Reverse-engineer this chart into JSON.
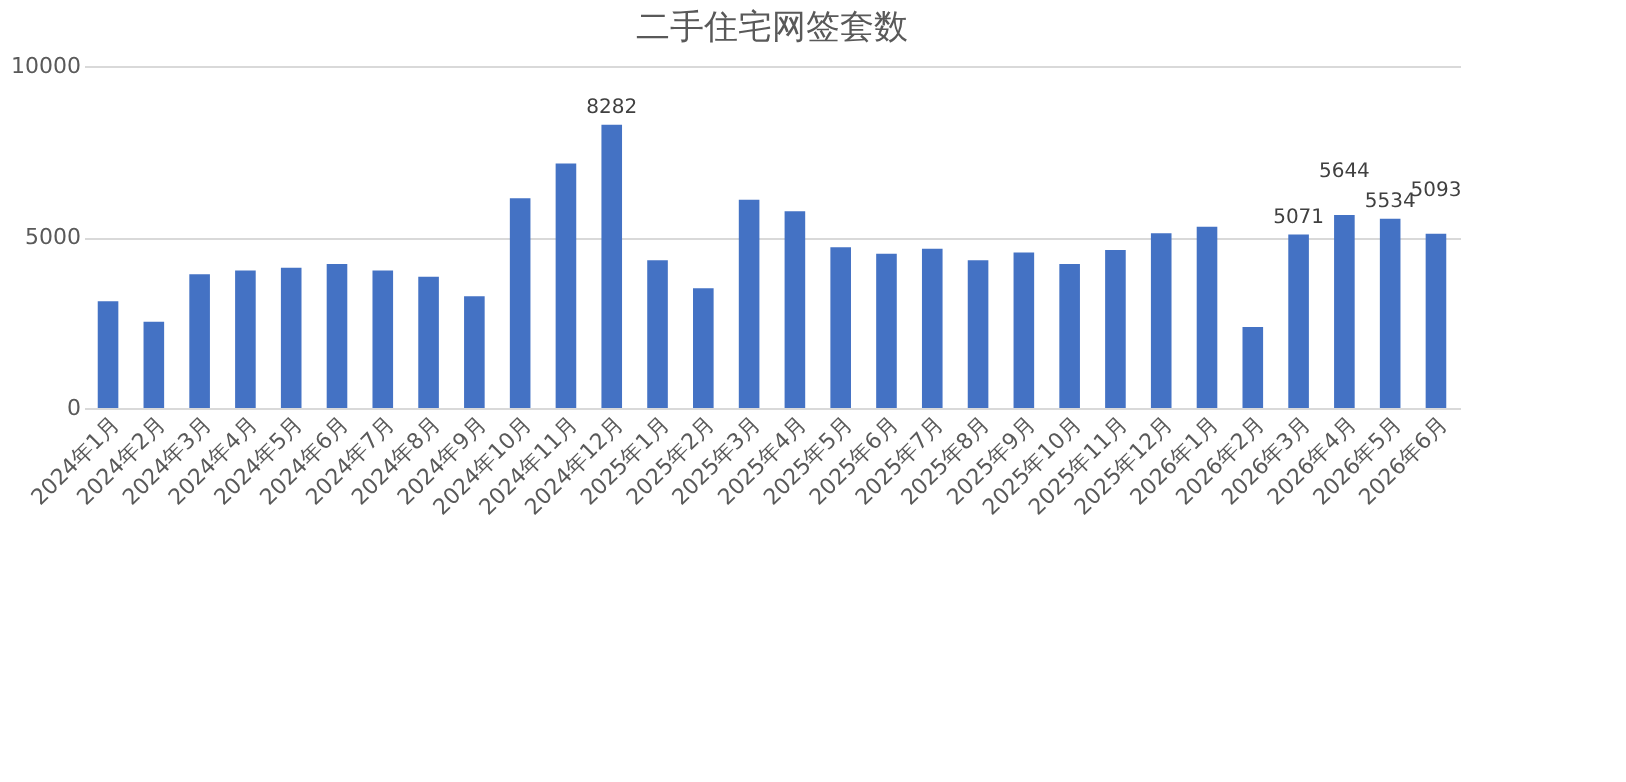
{
  "chart_data": {
    "type": "bar",
    "title": "二手住宅网签套数",
    "categories": [
      "2024年1月",
      "2024年2月",
      "2024年3月",
      "2024年4月",
      "2024年5月",
      "2024年6月",
      "2024年7月",
      "2024年8月",
      "2024年9月",
      "2024年10月",
      "2024年11月",
      "2024年12月",
      "2025年1月",
      "2025年2月",
      "2025年3月",
      "2025年4月",
      "2025年5月",
      "2025年6月",
      "2025年7月",
      "2025年8月",
      "2025年9月",
      "2025年10月",
      "2025年11月",
      "2025年12月",
      "2026年1月",
      "2026年2月",
      "2026年3月",
      "2026年4月",
      "2026年5月",
      "2026年6月"
    ],
    "values": [
      3120,
      2520,
      3910,
      4020,
      4100,
      4210,
      4020,
      3840,
      3270,
      6130,
      7150,
      8282,
      4320,
      3500,
      6090,
      5750,
      4700,
      4510,
      4660,
      4320,
      4550,
      4210,
      4620,
      5110,
      5300,
      2370,
      5071,
      5644,
      5534,
      5093
    ],
    "value_labels": [
      null,
      null,
      null,
      null,
      null,
      null,
      null,
      null,
      null,
      null,
      null,
      "8282",
      null,
      null,
      null,
      null,
      null,
      null,
      null,
      null,
      null,
      null,
      null,
      null,
      null,
      null,
      "5071",
      "5644",
      "5534",
      "5093"
    ],
    "color": "#4472c4",
    "ylim": [
      0,
      10000
    ],
    "yticks": [
      0,
      5000,
      10000
    ],
    "grid": "y"
  }
}
